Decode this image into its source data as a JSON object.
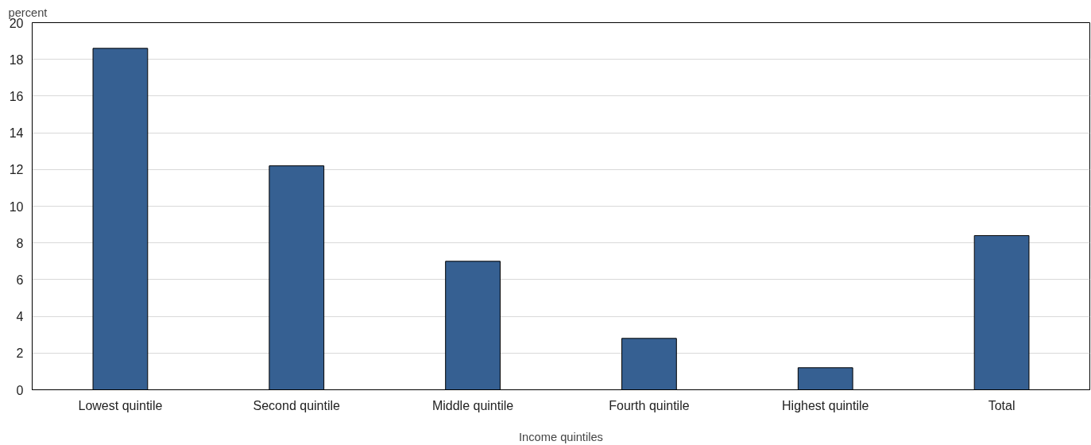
{
  "chart_data": {
    "type": "bar",
    "ylabel": "percent",
    "xlabel": "Income quintiles",
    "categories": [
      "Lowest quintile",
      "Second quintile",
      "Middle quintile",
      "Fourth quintile",
      "Highest quintile",
      "Total"
    ],
    "values": [
      18.6,
      12.2,
      7.0,
      2.8,
      1.2,
      8.4
    ],
    "color": "#366092",
    "ylim": [
      0,
      20
    ],
    "yticks": [
      0,
      2,
      4,
      6,
      8,
      10,
      12,
      14,
      16,
      18,
      20
    ],
    "grid": "y"
  }
}
